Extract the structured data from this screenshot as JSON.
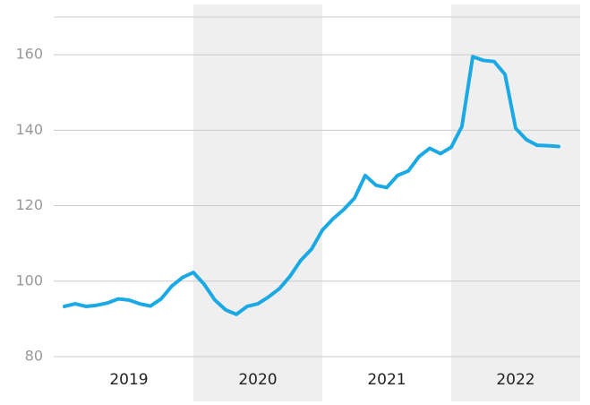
{
  "chart_data": {
    "type": "line",
    "x": [
      2019.0,
      2019.083,
      2019.167,
      2019.25,
      2019.333,
      2019.417,
      2019.5,
      2019.583,
      2019.667,
      2019.75,
      2019.833,
      2019.917,
      2020.0,
      2020.083,
      2020.167,
      2020.25,
      2020.333,
      2020.417,
      2020.5,
      2020.583,
      2020.667,
      2020.75,
      2020.833,
      2020.917,
      2021.0,
      2021.083,
      2021.167,
      2021.25,
      2021.333,
      2021.417,
      2021.5,
      2021.583,
      2021.667,
      2021.75,
      2021.833,
      2021.917,
      2022.0,
      2022.083,
      2022.167,
      2022.25,
      2022.333,
      2022.417,
      2022.5,
      2022.583,
      2022.667,
      2022.75,
      2022.833
    ],
    "series": [
      {
        "color": "#1ba9e6",
        "values": [
          93.3,
          94,
          93.3,
          93.6,
          94.2,
          95.3,
          95,
          94,
          93.4,
          95.3,
          98.7,
          101,
          102.3,
          99.2,
          95,
          92.4,
          91.2,
          93.3,
          94,
          95.8,
          98,
          101.3,
          105.5,
          108.5,
          113.5,
          116.5,
          119,
          122,
          128,
          125.4,
          124.8,
          128,
          129.2,
          133,
          135.2,
          133.8,
          135.5,
          141,
          159.5,
          158.5,
          158.2,
          154.8,
          140.5,
          137.5,
          136,
          135.9,
          135.7
        ]
      }
    ],
    "xlim": [
      2018.917,
      2023
    ],
    "xticks": [
      {
        "value": 2019.5,
        "label": "2019"
      },
      {
        "value": 2020.5,
        "label": "2020"
      },
      {
        "value": 2021.5,
        "label": "2021"
      },
      {
        "value": 2022.5,
        "label": "2022"
      }
    ],
    "shaded_spans": [
      [
        2020,
        2021
      ],
      [
        2022,
        2023
      ]
    ],
    "ylim": [
      80,
      170
    ],
    "yticks": [
      80,
      100,
      120,
      140,
      160
    ],
    "grid": true
  }
}
